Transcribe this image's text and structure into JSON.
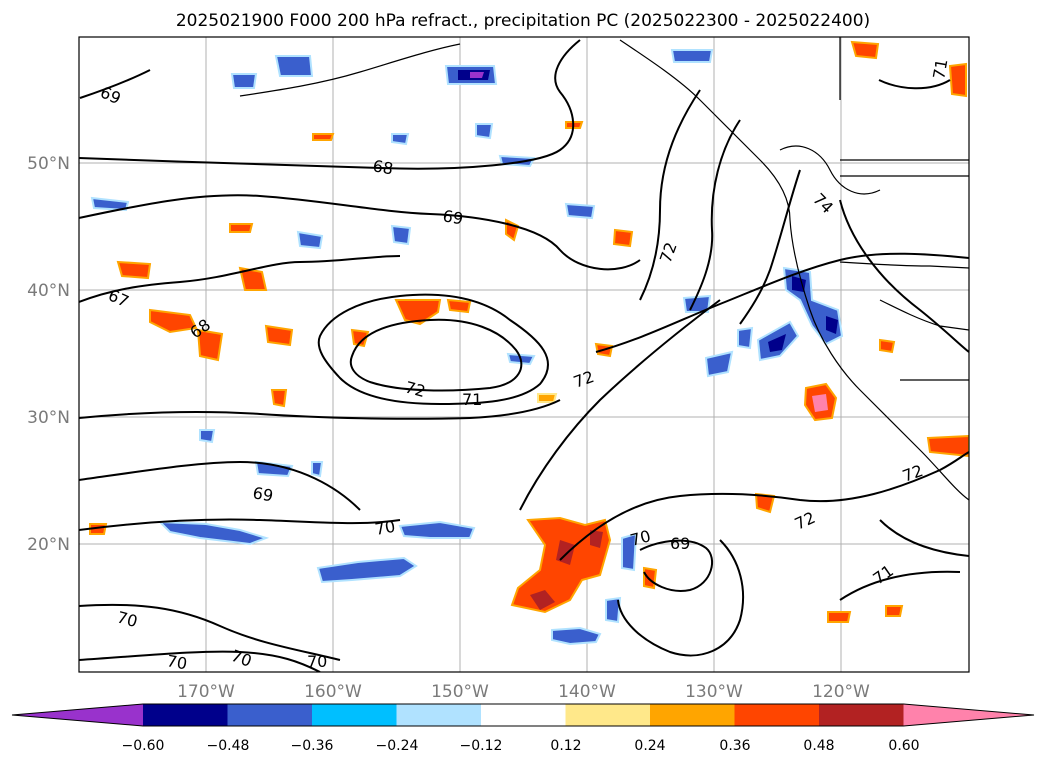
{
  "title": "2025021900 F000 200 hPa refract., precipitation PC (2025022300 - 2025022400)",
  "lat_labels": [
    "50°N",
    "40°N",
    "30°N",
    "20°N"
  ],
  "lon_labels": [
    "170°W",
    "160°W",
    "150°W",
    "140°W",
    "130°W",
    "120°W"
  ],
  "contour_labels": [
    "69",
    "68",
    "69",
    "67",
    "68",
    "72",
    "71",
    "72",
    "72",
    "69",
    "70",
    "70",
    "69",
    "72",
    "71",
    "72",
    "74",
    "71",
    "70",
    "70",
    "70",
    "70"
  ],
  "colorbar": {
    "ticks": [
      "−0.60",
      "−0.48",
      "−0.36",
      "−0.24",
      "−0.12",
      "0.12",
      "0.24",
      "0.36",
      "0.48",
      "0.60"
    ],
    "colors": [
      "#9932cc",
      "#00008b",
      "#3a5fcd",
      "#00bfff",
      "#b0e2ff",
      "#ffffff",
      "#ffe88a",
      "#ffa500",
      "#ff4500",
      "#b22222",
      "#ff82ab"
    ]
  }
}
